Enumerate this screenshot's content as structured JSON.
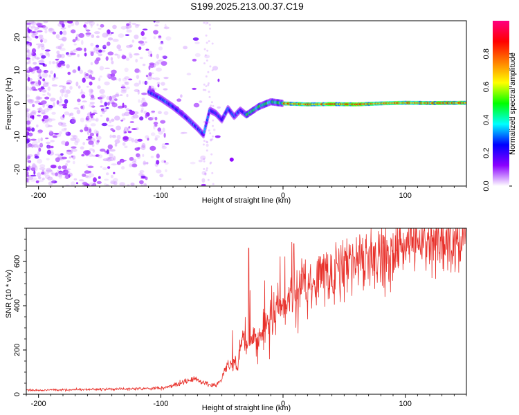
{
  "title": "S199.2025.213.00.37.C19",
  "chart_data": [
    {
      "type": "heatmap",
      "xlabel": "Height of straight line (km)",
      "ylabel": "Frequency (Hz)",
      "xlim": [
        -210,
        150
      ],
      "ylim": [
        -25,
        25
      ],
      "x_ticks": [
        -200,
        -100,
        0,
        100
      ],
      "y_ticks": [
        -20,
        -10,
        0,
        10,
        20
      ],
      "colorbar": {
        "label": "Normalized spectral amplitude",
        "range": [
          0,
          1
        ],
        "ticks": [
          0.0,
          0.2,
          0.4,
          0.6,
          0.8
        ],
        "tick_labels": [
          "0.0",
          "0.2",
          "0.4",
          "0.6",
          "0.8"
        ],
        "colormap": [
          "#ffffff",
          "#8b00ff",
          "#0000ff",
          "#00ffff",
          "#00ff00",
          "#ffff00",
          "#ff7f00",
          "#ff0000",
          "#ff0080"
        ]
      },
      "ridge": [
        {
          "x": -110,
          "y": 3.5
        },
        {
          "x": -100,
          "y": 1.5
        },
        {
          "x": -90,
          "y": -1
        },
        {
          "x": -80,
          "y": -4
        },
        {
          "x": -70,
          "y": -7.5
        },
        {
          "x": -65,
          "y": -9.5
        },
        {
          "x": -60,
          "y": -2
        },
        {
          "x": -55,
          "y": -3
        },
        {
          "x": -50,
          "y": -5
        },
        {
          "x": -45,
          "y": -1.5
        },
        {
          "x": -40,
          "y": -4
        },
        {
          "x": -35,
          "y": -2
        },
        {
          "x": -30,
          "y": -3.5
        },
        {
          "x": -20,
          "y": -1
        },
        {
          "x": -10,
          "y": 0.5
        },
        {
          "x": 0,
          "y": 0
        },
        {
          "x": 20,
          "y": -0.3
        },
        {
          "x": 40,
          "y": -0.2
        },
        {
          "x": 60,
          "y": -0.3
        },
        {
          "x": 80,
          "y": 0
        },
        {
          "x": 100,
          "y": 0.2
        },
        {
          "x": 120,
          "y": 0.1
        },
        {
          "x": 150,
          "y": 0.2
        }
      ]
    },
    {
      "type": "line",
      "xlabel": "Height of straight line (km)",
      "ylabel": "SNR (10 * v/v)",
      "xlim": [
        -210,
        150
      ],
      "ylim": [
        0,
        750
      ],
      "x_ticks": [
        -200,
        -100,
        0,
        100
      ],
      "y_ticks": [
        0,
        200,
        400,
        600
      ],
      "line_color": "#e8302a",
      "series": [
        {
          "x": [
            -210,
            -180,
            -150,
            -120,
            -100,
            -90,
            -80,
            -72,
            -65,
            -60,
            -55,
            -50,
            -45,
            -42,
            -40,
            -37,
            -35,
            -30,
            -25,
            -20,
            -15,
            -10,
            -5,
            0,
            5,
            10,
            15,
            20,
            25,
            30,
            40,
            50,
            60,
            70,
            80,
            90,
            100,
            110,
            120,
            130,
            140,
            150
          ],
          "y": [
            18,
            20,
            22,
            25,
            28,
            40,
            55,
            70,
            50,
            45,
            40,
            70,
            140,
            120,
            170,
            90,
            230,
            210,
            270,
            240,
            300,
            330,
            370,
            390,
            430,
            460,
            480,
            500,
            515,
            530,
            560,
            580,
            600,
            620,
            635,
            650,
            665,
            675,
            690,
            700,
            705,
            710
          ]
        }
      ]
    }
  ]
}
